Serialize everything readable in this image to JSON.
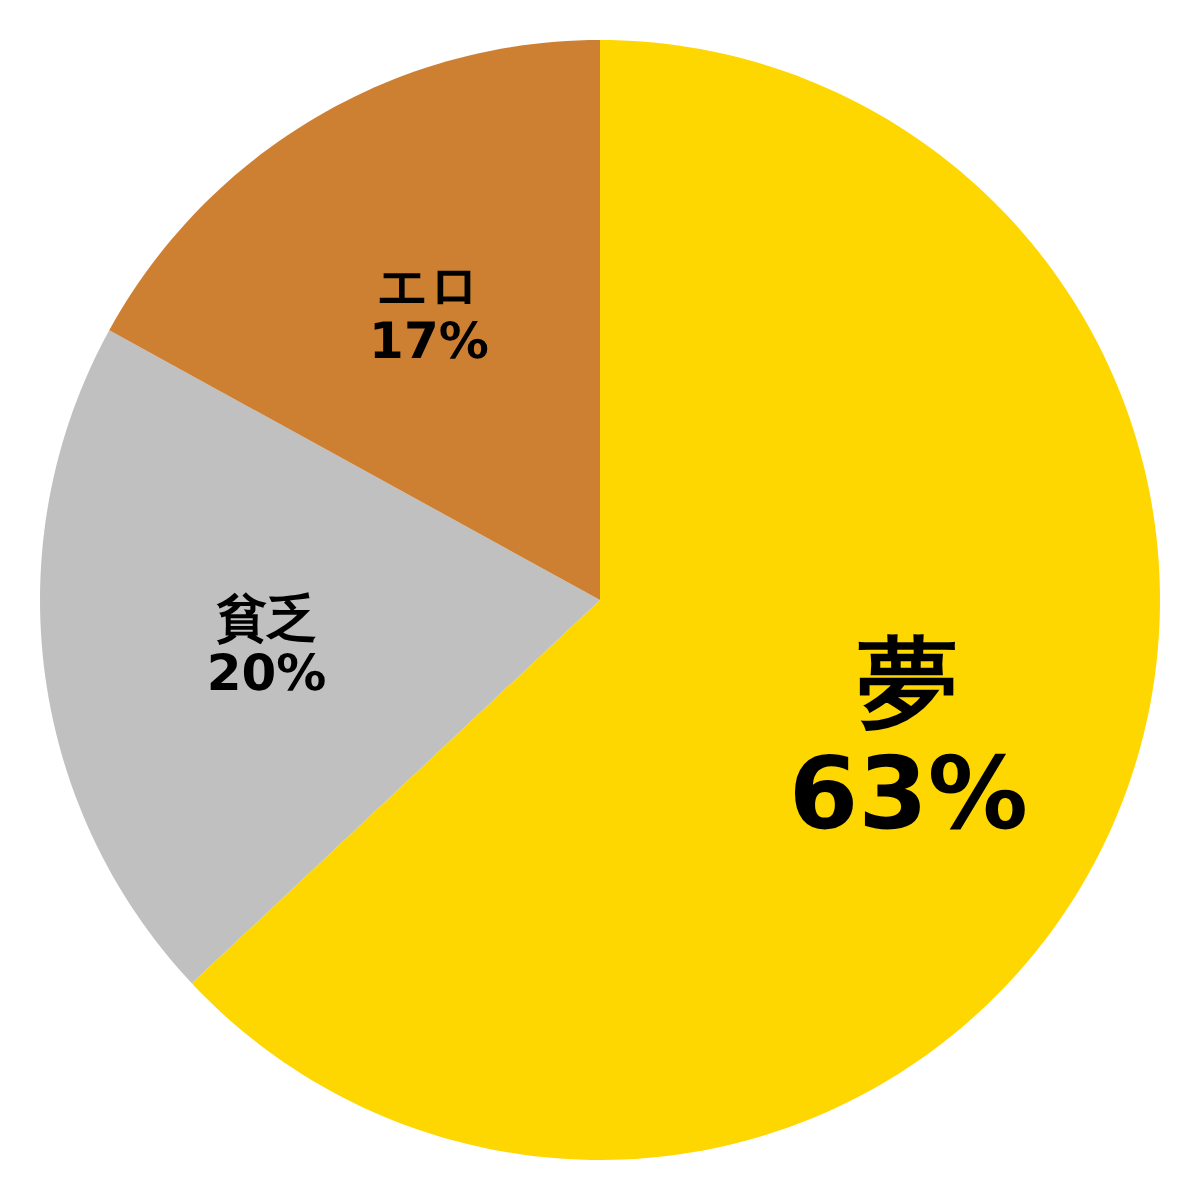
{
  "chart_data": {
    "type": "pie",
    "categories": [
      "夢",
      "貧乏",
      "エロ"
    ],
    "values": [
      63,
      20,
      17
    ],
    "colors": [
      "#ffd700",
      "#c0c0c0",
      "#cd7f32"
    ],
    "value_labels": [
      "63%",
      "20%",
      "17%"
    ]
  }
}
